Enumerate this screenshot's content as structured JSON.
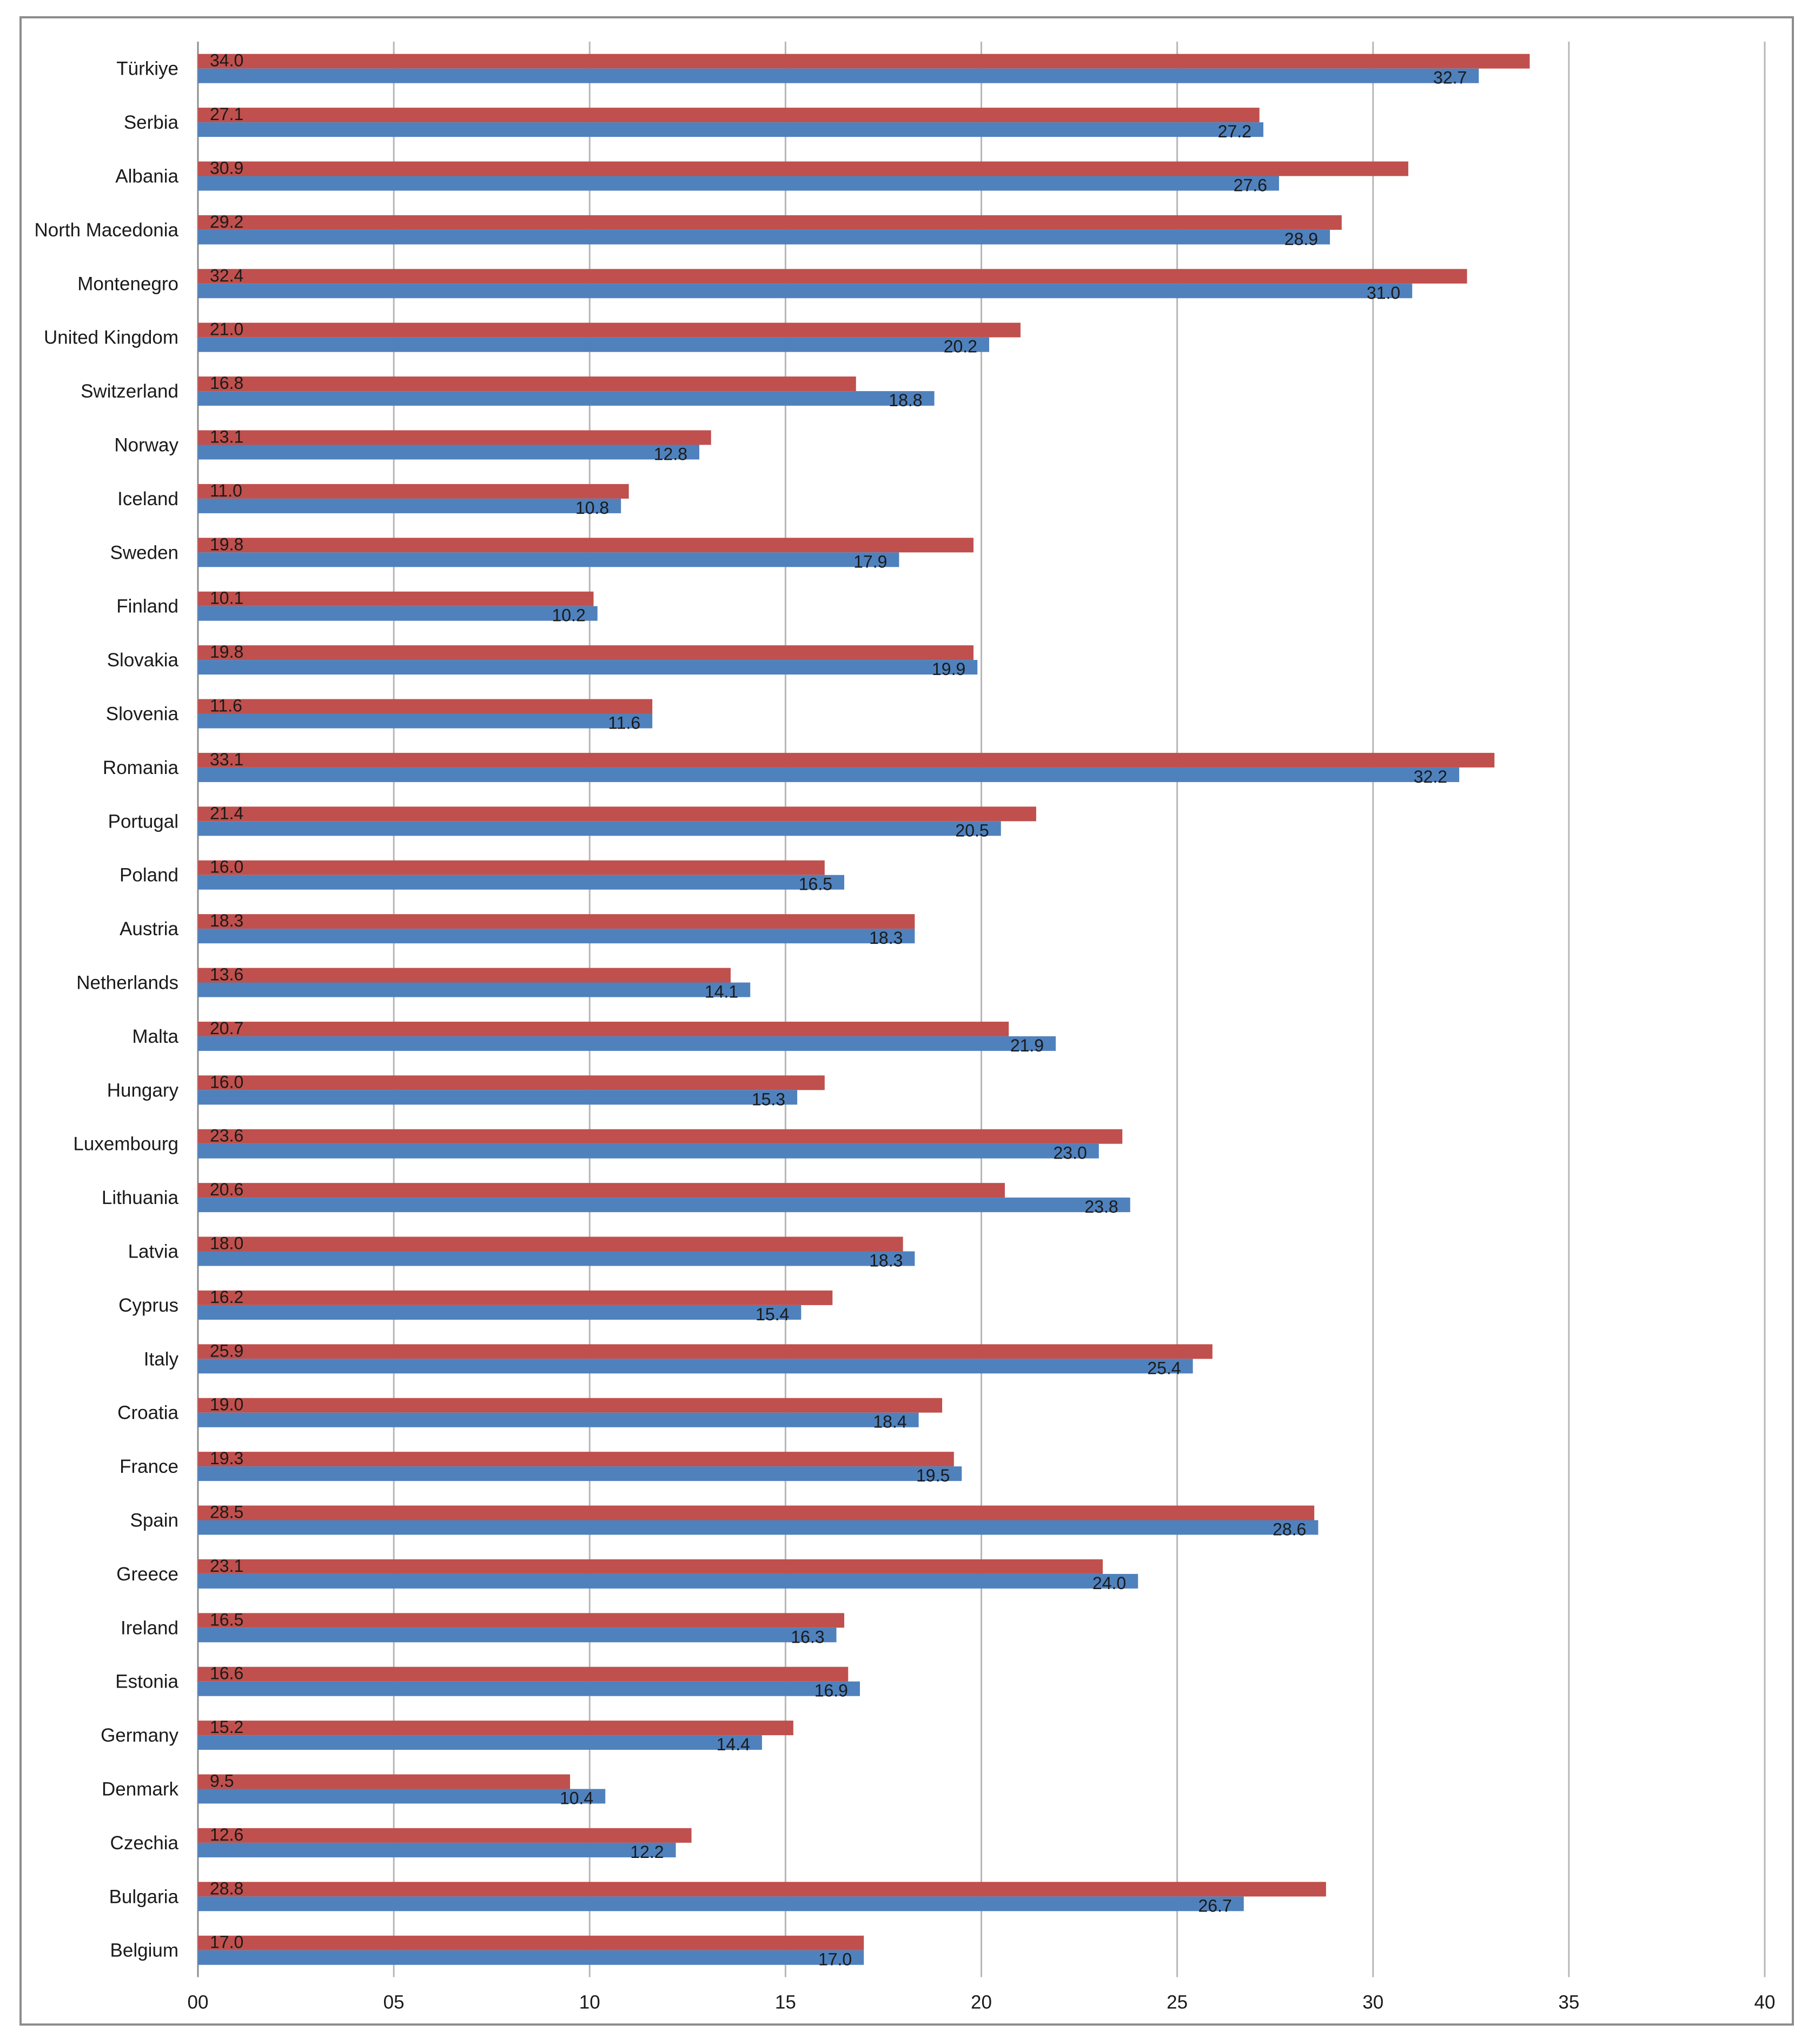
{
  "chart_data": {
    "type": "bar",
    "orientation": "horizontal",
    "categories": [
      "Türkiye",
      "Serbia",
      "Albania",
      "North Macedonia",
      "Montenegro",
      "United Kingdom",
      "Switzerland",
      "Norway",
      "Iceland",
      "Sweden",
      "Finland",
      "Slovakia",
      "Slovenia",
      "Romania",
      "Portugal",
      "Poland",
      "Austria",
      "Netherlands",
      "Malta",
      "Hungary",
      "Luxembourg",
      "Lithuania",
      "Latvia",
      "Cyprus",
      "Italy",
      "Croatia",
      "France",
      "Spain",
      "Greece",
      "Ireland",
      "Estonia",
      "Germany",
      "Denmark",
      "Czechia",
      "Bulgaria",
      "Belgium"
    ],
    "series": [
      {
        "color": "#c0504d",
        "values": [
          34.0,
          27.1,
          30.9,
          29.2,
          32.4,
          21.0,
          16.8,
          13.1,
          11.0,
          19.8,
          10.1,
          19.8,
          11.6,
          33.1,
          21.4,
          16.0,
          18.3,
          13.6,
          20.7,
          16.0,
          23.6,
          20.6,
          18.0,
          16.2,
          25.9,
          19.0,
          19.3,
          28.5,
          23.1,
          16.5,
          16.6,
          15.2,
          9.5,
          12.6,
          28.8,
          17.0
        ],
        "labels": [
          "34.0",
          "27.1",
          "30.9",
          "29.2",
          "32.4",
          "21.0",
          "16.8",
          "13.1",
          "11.0",
          "19.8",
          "10.1",
          "19.8",
          "11.6",
          "33.1",
          "21.4",
          "16.0",
          "18.3",
          "13.6",
          "20.7",
          "16.0",
          "23.6",
          "20.6",
          "18.0",
          "16.2",
          "25.9",
          "19.0",
          "19.3",
          "28.5",
          "23.1",
          "16.5",
          "16.6",
          "15.2",
          "9.5",
          "12.6",
          "28.8",
          "17.0"
        ]
      },
      {
        "color": "#4f81bd",
        "values": [
          32.7,
          27.2,
          27.6,
          28.9,
          31.0,
          20.2,
          18.8,
          12.8,
          10.8,
          17.9,
          10.2,
          19.9,
          11.6,
          32.2,
          20.5,
          16.5,
          18.3,
          14.1,
          21.9,
          15.3,
          23.0,
          23.8,
          18.3,
          15.4,
          25.4,
          18.4,
          19.5,
          28.6,
          24.0,
          16.3,
          16.9,
          14.4,
          10.4,
          12.2,
          26.7,
          17.0
        ],
        "labels": [
          "32.7",
          "27.2",
          "27.6",
          "28.9",
          "31.0",
          "20.2",
          "18.8",
          "12.8",
          "10.8",
          "17.9",
          "10.2",
          "19.9",
          "11.6",
          "32.2",
          "20.5",
          "16.5",
          "18.3",
          "14.1",
          "21.9",
          "15.3",
          "23.0",
          "23.8",
          "18.3",
          "15.4",
          "25.4",
          "18.4",
          "19.5",
          "28.6",
          "24.0",
          "16.3",
          "16.9",
          "14.4",
          "10.4",
          "12.2",
          "26.7",
          "17.0"
        ]
      }
    ],
    "x_ticks": [
      "00",
      "05",
      "10",
      "15",
      "20",
      "25",
      "30",
      "35",
      "40"
    ],
    "xlim": [
      0,
      40
    ],
    "title": "",
    "xlabel": "",
    "ylabel": "",
    "grid": "vertical major gridlines",
    "legend": "none"
  }
}
